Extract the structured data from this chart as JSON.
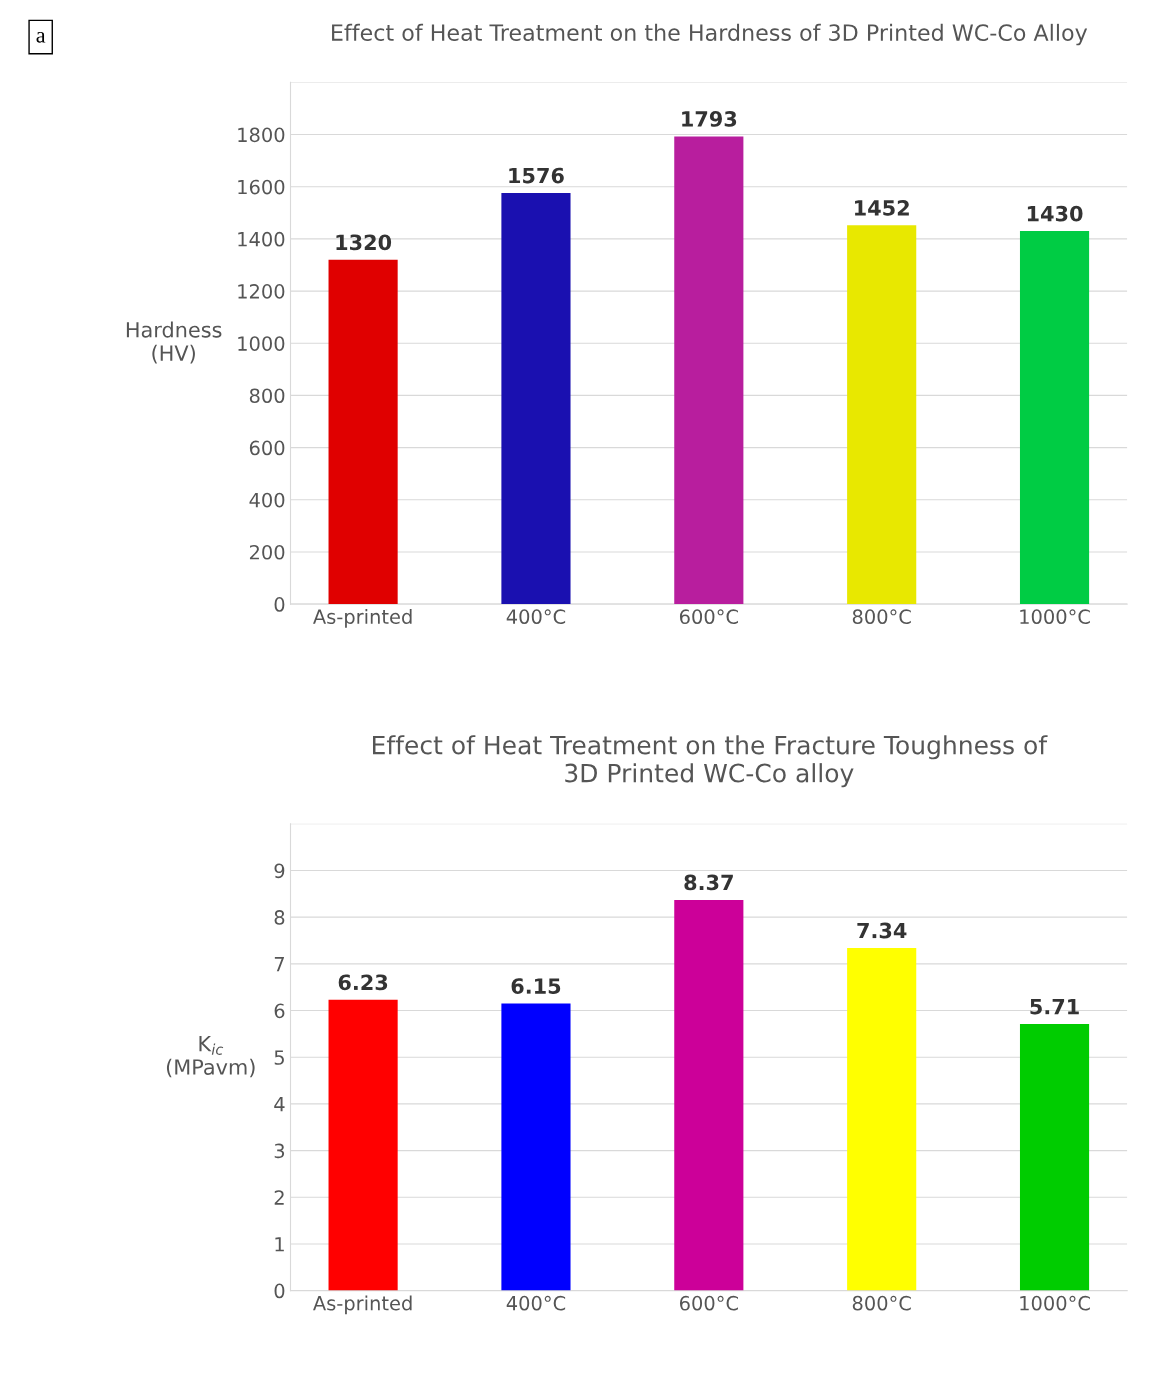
{
  "chart_data": [
    {
      "type": "bar",
      "title": "Effect of Heat Treatment on the Hardness of 3D Printed WC-Co Alloy",
      "ylabel": "Hardness\n(HV)",
      "annotations": [
        "a"
      ],
      "categories": [
        "As-printed",
        "400°C",
        "600°C",
        "800°C",
        "1000°C"
      ],
      "values": [
        1320,
        1576,
        1793,
        1452,
        1430
      ],
      "colors": [
        "#e00000",
        "#1a10b0",
        "#b81e9e",
        "#e8e800",
        "#00cc44"
      ],
      "ylim": [
        0,
        2000
      ],
      "yticks": [
        0,
        200,
        400,
        600,
        800,
        1000,
        1200,
        1400,
        1600,
        1800,
        {
          "value": 2000,
          "label": null
        }
      ],
      "grid": "y",
      "data_labels": true
    },
    {
      "type": "bar",
      "title": "Effect of Heat Treatment on the Fracture Toughness of\n3D Printed WC-Co alloy",
      "ylabel": "K$_{ic}$\n(MPavm)",
      "categories": [
        "As-printed",
        "400°C",
        "600°C",
        "800°C",
        "1000°C"
      ],
      "values": [
        6.23,
        6.15,
        8.37,
        7.34,
        5.71
      ],
      "colors": [
        "#ff0000",
        "#0000ff",
        "#cc0099",
        "#ffff00",
        "#00cc00"
      ],
      "ylim": [
        0,
        10
      ],
      "yticks": [
        0,
        1,
        2,
        3,
        4,
        5,
        6,
        7,
        8,
        9,
        {
          "value": 10,
          "label": null
        }
      ],
      "grid": "y",
      "data_labels": true
    }
  ]
}
